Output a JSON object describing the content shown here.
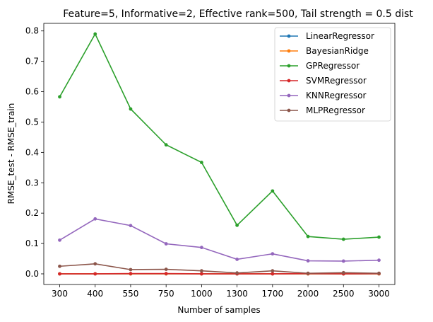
{
  "chart_data": {
    "type": "line",
    "title": "Feature=5, Informative=2, Effective rank=500, Tail strength = 0.5 dist",
    "xlabel": "Number of samples",
    "ylabel": "RMSE_test - RMSE_train",
    "categories": [
      "300",
      "400",
      "550",
      "750",
      "1000",
      "1300",
      "1700",
      "2000",
      "2500",
      "3000"
    ],
    "ylim": [
      -0.035,
      0.825
    ],
    "yticks": [
      "0.0",
      "0.1",
      "0.2",
      "0.3",
      "0.4",
      "0.5",
      "0.6",
      "0.7",
      "0.8"
    ],
    "grid": false,
    "legend_position": "top-right",
    "series": [
      {
        "name": "LinearRegressor",
        "color": "#1f77b4",
        "values": [
          0.0,
          0.0,
          0.0,
          0.0,
          0.0,
          0.0,
          0.0,
          0.0,
          0.0,
          0.0
        ]
      },
      {
        "name": "BayesianRidge",
        "color": "#ff7f0e",
        "values": [
          0.0,
          0.0,
          0.0,
          0.0,
          0.0,
          0.0,
          0.0,
          0.0,
          0.0,
          0.0
        ]
      },
      {
        "name": "GPRegressor",
        "color": "#2ca02c",
        "values": [
          0.583,
          0.79,
          0.543,
          0.425,
          0.367,
          0.16,
          0.273,
          0.123,
          0.114,
          0.121
        ]
      },
      {
        "name": "SVMRegressor",
        "color": "#d62728",
        "values": [
          0.0,
          0.0,
          0.001,
          0.001,
          0.0,
          0.0,
          0.0,
          0.001,
          0.0,
          0.001
        ]
      },
      {
        "name": "KNNRegressor",
        "color": "#9467bd",
        "values": [
          0.111,
          0.181,
          0.159,
          0.099,
          0.087,
          0.048,
          0.066,
          0.043,
          0.042,
          0.045
        ]
      },
      {
        "name": "MLPRegressor",
        "color": "#8c564b",
        "values": [
          0.025,
          0.033,
          0.014,
          0.015,
          0.01,
          0.003,
          0.01,
          0.002,
          0.004,
          0.002
        ]
      }
    ]
  }
}
